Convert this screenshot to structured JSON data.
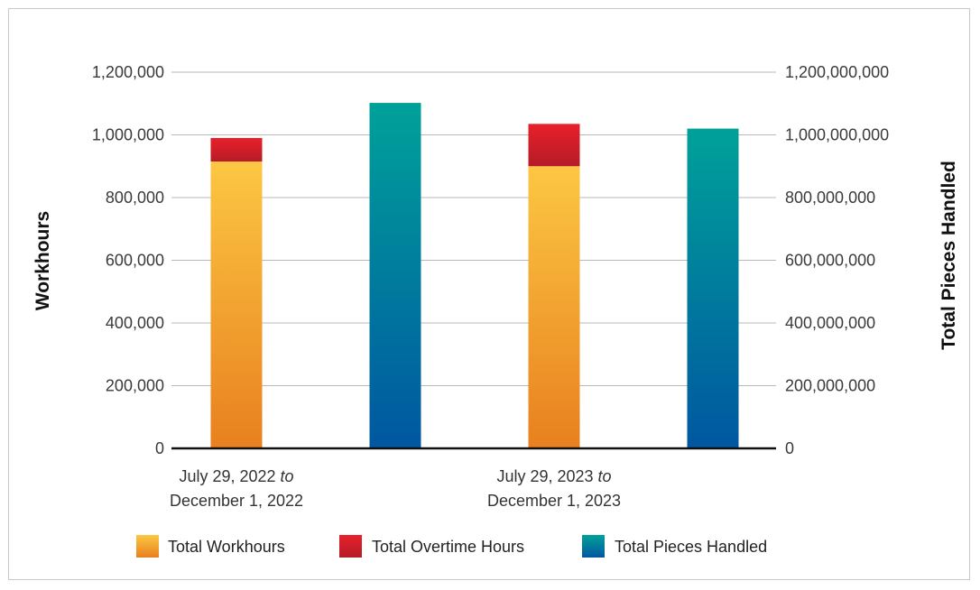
{
  "chart_data": {
    "type": "bar",
    "categories": [
      {
        "line1": "July 29, 2022",
        "line1_italic": " to",
        "line2": "December 1, 2022"
      },
      {
        "line1": "July 29, 2023",
        "line1_italic": " to",
        "line2": "December 1, 2023"
      }
    ],
    "series": [
      {
        "name": "Total Workhours",
        "axis": "left",
        "values": [
          915000,
          900000
        ]
      },
      {
        "name": "Total Overtime Hours",
        "axis": "left",
        "stacked_on": "Total Workhours",
        "values": [
          75000,
          135000
        ]
      },
      {
        "name": "Total Pieces Handled",
        "axis": "right",
        "values": [
          1102000000,
          1020000000
        ]
      }
    ],
    "ylabel": "Workhours",
    "y2label": "Total Pieces Handled",
    "ylim": [
      0,
      1200000
    ],
    "y2lim": [
      0,
      1200000000
    ],
    "yticks": [
      "0",
      "200,000",
      "400,000",
      "600,000",
      "800,000",
      "1,000,000",
      "1,200,000"
    ],
    "y2ticks": [
      "0",
      "200,000,000",
      "400,000,000",
      "600,000,000",
      "800,000,000",
      "1,000,000,000",
      "1,200,000,000"
    ],
    "grid": true,
    "legend_position": "bottom",
    "colors": {
      "workhours_top": "#fcc743",
      "workhours_bottom": "#e8801f",
      "overtime_top": "#e8202a",
      "overtime_bottom": "#b51c28",
      "pieces_top": "#00a19a",
      "pieces_bottom": "#0057a0"
    }
  }
}
